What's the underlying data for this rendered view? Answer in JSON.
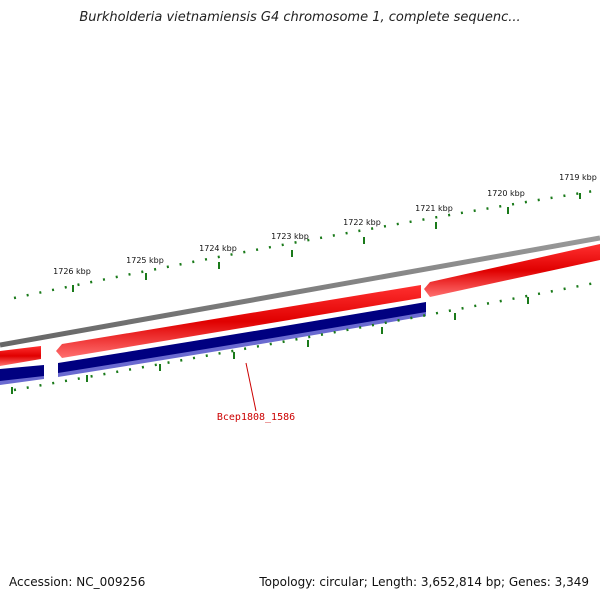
{
  "title": "Burkholderia vietnamiensis G4 chromosome 1, complete sequenc...",
  "footer": {
    "accession": "Accession: NC_009256",
    "summary": "Topology: circular; Length: 3,652,814 bp; Genes: 3,349"
  },
  "ruler": {
    "labels": [
      "1726 kbp",
      "1725 kbp",
      "1724 kbp",
      "1723 kbp",
      "1722 kbp",
      "1721 kbp",
      "1720 kbp",
      "1719 kbp"
    ]
  },
  "genes": {
    "highlighted_label": "Bcep1808_1586"
  },
  "colors": {
    "backbone": "#808080",
    "forward_gene": "#ee0000",
    "reverse_gene": "#000080",
    "ticks": "#1a7a1a",
    "label": "#cc0000"
  }
}
